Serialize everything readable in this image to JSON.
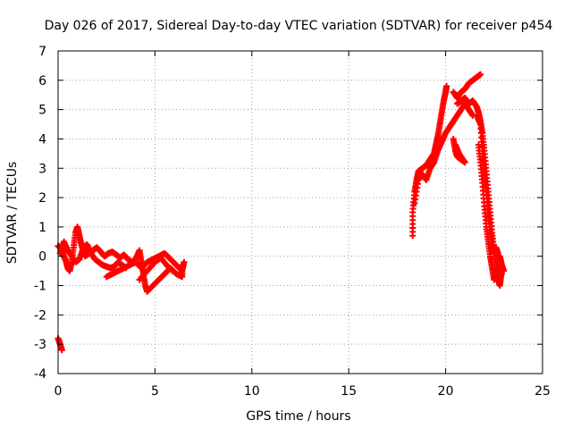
{
  "chart_data": {
    "type": "scatter",
    "title": "Day 026 of 2017, Sidereal Day-to-day VTEC variation (SDTVAR) for receiver p454",
    "xlabel": "GPS time / hours",
    "ylabel": "SDTVAR / TECUs",
    "xlim": [
      0,
      25
    ],
    "ylim": [
      -4,
      7
    ],
    "xticks": [
      0,
      5,
      10,
      15,
      20,
      25
    ],
    "yticks": [
      -4,
      -3,
      -2,
      -1,
      0,
      1,
      2,
      3,
      4,
      5,
      6,
      7
    ],
    "grid": true,
    "marker": "+",
    "series": [
      {
        "name": "SDTVAR",
        "color": "#ff0000",
        "segments": [
          [
            [
              0.0,
              -2.8
            ],
            [
              0.1,
              -3.0
            ],
            [
              0.2,
              -3.2
            ]
          ],
          [
            [
              0.0,
              0.35
            ],
            [
              0.1,
              0.3
            ],
            [
              0.2,
              0.2
            ],
            [
              0.3,
              0.0
            ],
            [
              0.4,
              -0.15
            ],
            [
              0.5,
              -0.4
            ],
            [
              0.6,
              -0.5
            ],
            [
              0.7,
              -0.2
            ],
            [
              0.8,
              0.3
            ],
            [
              0.9,
              0.8
            ],
            [
              1.0,
              1.0
            ],
            [
              1.1,
              0.7
            ],
            [
              1.2,
              0.4
            ],
            [
              1.3,
              0.2
            ],
            [
              1.4,
              0.0
            ],
            [
              1.6,
              0.1
            ],
            [
              1.8,
              0.2
            ],
            [
              2.0,
              0.3
            ],
            [
              2.2,
              0.15
            ],
            [
              2.4,
              0.0
            ],
            [
              2.6,
              0.1
            ],
            [
              2.8,
              0.15
            ],
            [
              3.0,
              0.05
            ],
            [
              3.2,
              -0.05
            ],
            [
              3.4,
              0.05
            ],
            [
              3.6,
              -0.1
            ],
            [
              3.8,
              -0.2
            ],
            [
              4.0,
              -0.1
            ],
            [
              4.2,
              0.2
            ],
            [
              4.3,
              -0.2
            ],
            [
              4.4,
              -0.6
            ],
            [
              4.5,
              -1.0
            ],
            [
              4.6,
              -1.2
            ]
          ],
          [
            [
              0.1,
              0.1
            ],
            [
              0.3,
              0.5
            ],
            [
              0.5,
              0.2
            ],
            [
              0.7,
              0.0
            ],
            [
              0.9,
              -0.2
            ],
            [
              1.1,
              -0.1
            ],
            [
              1.3,
              0.3
            ],
            [
              1.5,
              0.4
            ],
            [
              1.7,
              0.1
            ],
            [
              1.9,
              -0.1
            ],
            [
              2.1,
              -0.2
            ],
            [
              2.3,
              -0.3
            ],
            [
              2.5,
              -0.35
            ],
            [
              2.7,
              -0.4
            ],
            [
              2.9,
              -0.35
            ],
            [
              3.1,
              -0.2
            ],
            [
              3.3,
              -0.3
            ],
            [
              3.5,
              -0.4
            ]
          ],
          [
            [
              2.5,
              -0.7
            ],
            [
              2.8,
              -0.6
            ],
            [
              3.1,
              -0.5
            ],
            [
              3.4,
              -0.4
            ],
            [
              3.7,
              -0.3
            ],
            [
              4.0,
              -0.2
            ],
            [
              4.3,
              -0.4
            ],
            [
              4.6,
              -0.2
            ],
            [
              4.9,
              -0.1
            ],
            [
              5.2,
              0.0
            ],
            [
              5.5,
              0.1
            ],
            [
              5.8,
              -0.1
            ],
            [
              6.1,
              -0.3
            ],
            [
              6.4,
              -0.5
            ],
            [
              6.5,
              -0.2
            ]
          ],
          [
            [
              4.6,
              -1.2
            ],
            [
              4.9,
              -1.0
            ],
            [
              5.2,
              -0.8
            ],
            [
              5.5,
              -0.6
            ],
            [
              5.8,
              -0.4
            ],
            [
              6.1,
              -0.6
            ],
            [
              6.4,
              -0.7
            ],
            [
              6.4,
              -0.3
            ]
          ],
          [
            [
              4.2,
              -0.8
            ],
            [
              4.6,
              -0.5
            ],
            [
              5.0,
              -0.2
            ],
            [
              5.3,
              -0.05
            ],
            [
              5.6,
              -0.3
            ],
            [
              5.9,
              -0.5
            ]
          ],
          [
            [
              18.3,
              0.7
            ],
            [
              18.3,
              1.5
            ],
            [
              18.4,
              2.2
            ],
            [
              18.5,
              2.6
            ],
            [
              18.6,
              2.9
            ],
            [
              18.8,
              3.0
            ],
            [
              19.0,
              3.1
            ],
            [
              19.2,
              3.3
            ],
            [
              19.4,
              3.5
            ],
            [
              19.5,
              3.8
            ],
            [
              19.6,
              4.1
            ],
            [
              19.7,
              4.5
            ],
            [
              19.8,
              4.9
            ],
            [
              19.9,
              5.3
            ],
            [
              20.0,
              5.6
            ],
            [
              20.05,
              5.8
            ]
          ],
          [
            [
              18.4,
              1.8
            ],
            [
              18.6,
              2.6
            ],
            [
              18.8,
              2.8
            ],
            [
              19.0,
              2.6
            ],
            [
              19.2,
              3.0
            ],
            [
              19.4,
              3.2
            ],
            [
              19.6,
              3.6
            ],
            [
              19.8,
              3.9
            ],
            [
              20.0,
              4.2
            ],
            [
              20.2,
              4.4
            ],
            [
              20.4,
              4.6
            ],
            [
              20.6,
              4.8
            ],
            [
              20.8,
              5.0
            ],
            [
              21.0,
              5.2
            ],
            [
              21.2,
              5.0
            ],
            [
              21.4,
              4.8
            ]
          ],
          [
            [
              20.4,
              4.0
            ],
            [
              20.5,
              3.6
            ],
            [
              20.6,
              3.4
            ],
            [
              20.8,
              3.3
            ],
            [
              21.0,
              3.2
            ],
            [
              20.7,
              3.5
            ],
            [
              20.5,
              3.8
            ]
          ],
          [
            [
              20.4,
              5.6
            ],
            [
              20.6,
              5.4
            ],
            [
              20.8,
              5.6
            ],
            [
              21.0,
              5.7
            ],
            [
              21.2,
              5.9
            ],
            [
              21.4,
              6.0
            ],
            [
              21.6,
              6.1
            ],
            [
              21.8,
              6.2
            ]
          ],
          [
            [
              20.6,
              5.2
            ],
            [
              20.8,
              5.3
            ],
            [
              21.0,
              5.4
            ],
            [
              21.2,
              5.2
            ],
            [
              21.4,
              5.3
            ],
            [
              21.6,
              5.1
            ],
            [
              21.7,
              4.9
            ],
            [
              21.8,
              4.6
            ],
            [
              21.9,
              4.2
            ],
            [
              22.0,
              3.6
            ],
            [
              22.1,
              2.9
            ],
            [
              22.2,
              2.2
            ],
            [
              22.3,
              1.5
            ],
            [
              22.4,
              0.8
            ],
            [
              22.5,
              0.2
            ],
            [
              22.6,
              -0.4
            ],
            [
              22.7,
              -0.8
            ],
            [
              22.8,
              -1.0
            ],
            [
              22.85,
              -0.7
            ],
            [
              22.9,
              -0.4
            ]
          ],
          [
            [
              21.6,
              4.8
            ],
            [
              21.8,
              4.5
            ],
            [
              21.9,
              3.6
            ],
            [
              22.0,
              2.9
            ],
            [
              22.1,
              2.2
            ],
            [
              22.2,
              1.5
            ],
            [
              22.3,
              0.9
            ],
            [
              22.4,
              0.4
            ],
            [
              22.5,
              0.1
            ],
            [
              22.6,
              0.3
            ],
            [
              22.7,
              0.1
            ],
            [
              22.8,
              -0.3
            ],
            [
              22.9,
              -0.6
            ]
          ],
          [
            [
              21.7,
              3.8
            ],
            [
              21.8,
              3.2
            ],
            [
              21.9,
              2.5
            ],
            [
              22.0,
              1.7
            ],
            [
              22.1,
              1.0
            ],
            [
              22.2,
              0.5
            ],
            [
              22.3,
              0.0
            ],
            [
              22.4,
              -0.4
            ],
            [
              22.5,
              -0.8
            ],
            [
              22.6,
              -0.6
            ],
            [
              22.7,
              -0.2
            ],
            [
              22.8,
              0.0
            ],
            [
              22.9,
              -0.3
            ],
            [
              23.0,
              -0.5
            ]
          ]
        ]
      }
    ]
  }
}
